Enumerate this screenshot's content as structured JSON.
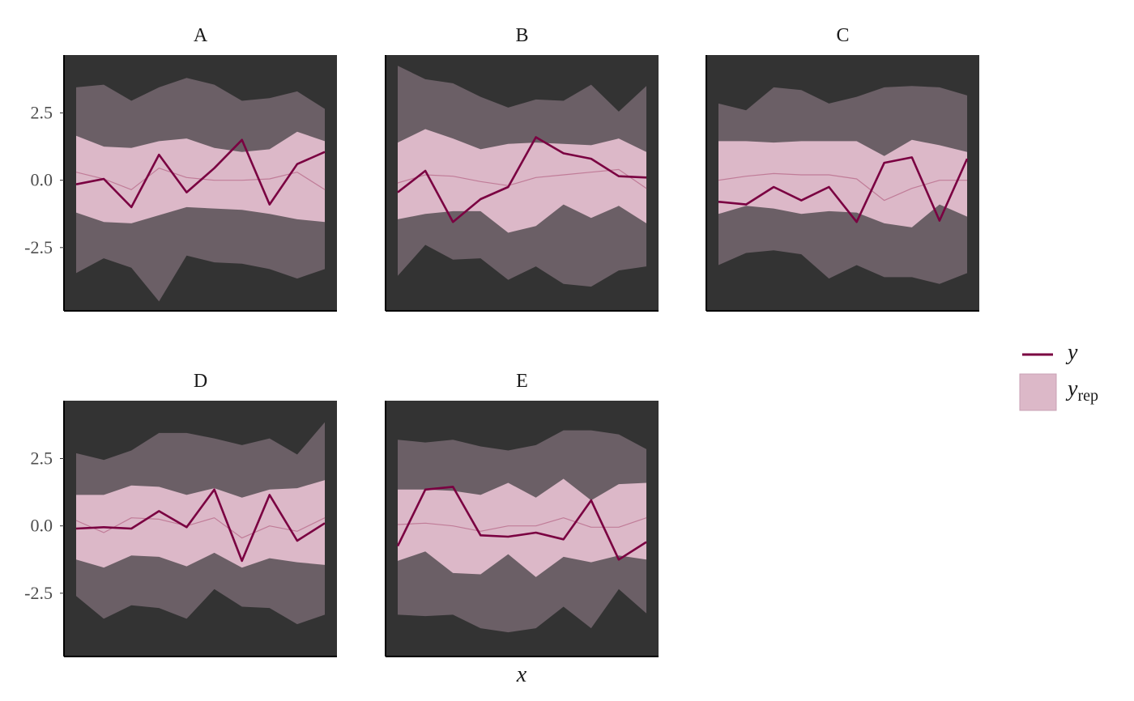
{
  "chart_data": {
    "type": "area",
    "layout": "facet-grid",
    "xlabel": "x",
    "ylabel": "",
    "ylim": [
      -4.85,
      4.65
    ],
    "y_ticks": [
      -2.5,
      0.0,
      2.5
    ],
    "y_tick_labels": [
      "-2.5",
      "0.0",
      "2.5"
    ],
    "x": [
      1,
      2,
      3,
      4,
      5,
      6,
      7,
      8,
      9,
      10
    ],
    "colors": {
      "panel_bg": "#333333",
      "outer_band": "#6b5f66",
      "inner_band": "#dcb8c8",
      "median_line": "#c07c98",
      "y_line": "#7a0041"
    },
    "legend": {
      "position": "right",
      "items": [
        {
          "label": "y",
          "kind": "line"
        },
        {
          "label": "y",
          "subscript": "rep",
          "kind": "band"
        }
      ]
    },
    "panels": [
      {
        "name": "A",
        "y": [
          -0.15,
          0.05,
          -1.0,
          0.95,
          -0.45,
          0.45,
          1.5,
          -0.9,
          0.6,
          1.05
        ],
        "median": [
          0.3,
          0.05,
          -0.35,
          0.45,
          0.1,
          0.0,
          0.0,
          0.05,
          0.3,
          -0.35
        ],
        "inner_low": [
          -1.2,
          -1.55,
          -1.6,
          -1.3,
          -1.0,
          -1.05,
          -1.1,
          -1.25,
          -1.45,
          -1.55
        ],
        "inner_high": [
          1.65,
          1.25,
          1.2,
          1.45,
          1.55,
          1.2,
          1.05,
          1.15,
          1.8,
          1.45
        ],
        "outer_low": [
          -3.45,
          -2.9,
          -3.25,
          -4.5,
          -2.8,
          -3.05,
          -3.1,
          -3.3,
          -3.65,
          -3.3
        ],
        "outer_high": [
          3.45,
          3.55,
          2.95,
          3.45,
          3.8,
          3.55,
          2.95,
          3.05,
          3.3,
          2.65
        ]
      },
      {
        "name": "B",
        "y": [
          -0.45,
          0.35,
          -1.55,
          -0.7,
          -0.25,
          1.6,
          1.0,
          0.8,
          0.15,
          0.1
        ],
        "median": [
          -0.1,
          0.2,
          0.15,
          -0.05,
          -0.2,
          0.1,
          0.2,
          0.3,
          0.4,
          -0.3
        ],
        "inner_low": [
          -1.45,
          -1.25,
          -1.15,
          -1.15,
          -1.95,
          -1.7,
          -0.9,
          -1.4,
          -0.95,
          -1.6
        ],
        "inner_high": [
          1.4,
          1.9,
          1.55,
          1.15,
          1.35,
          1.4,
          1.35,
          1.3,
          1.55,
          1.05
        ],
        "outer_low": [
          -3.55,
          -2.4,
          -2.95,
          -2.9,
          -3.7,
          -3.2,
          -3.85,
          -3.95,
          -3.35,
          -3.2
        ],
        "outer_high": [
          4.25,
          3.75,
          3.6,
          3.1,
          2.7,
          3.0,
          2.95,
          3.55,
          2.55,
          3.5
        ]
      },
      {
        "name": "C",
        "y": [
          -0.8,
          -0.9,
          -0.25,
          -0.75,
          -0.25,
          -1.55,
          0.65,
          0.85,
          -1.5,
          0.8
        ],
        "median": [
          0.0,
          0.15,
          0.25,
          0.2,
          0.2,
          0.05,
          -0.75,
          -0.3,
          0.0,
          0.0
        ],
        "inner_low": [
          -1.25,
          -0.95,
          -1.05,
          -1.25,
          -1.15,
          -1.2,
          -1.6,
          -1.75,
          -0.9,
          -1.35
        ],
        "inner_high": [
          1.45,
          1.45,
          1.4,
          1.45,
          1.45,
          1.45,
          0.9,
          1.5,
          1.3,
          1.05
        ],
        "outer_low": [
          -3.15,
          -2.7,
          -2.6,
          -2.75,
          -3.65,
          -3.15,
          -3.6,
          -3.6,
          -3.85,
          -3.45
        ],
        "outer_high": [
          2.85,
          2.6,
          3.45,
          3.35,
          2.85,
          3.1,
          3.45,
          3.5,
          3.45,
          3.15
        ]
      },
      {
        "name": "D",
        "y": [
          -0.1,
          -0.05,
          -0.1,
          0.55,
          -0.05,
          1.35,
          -1.3,
          1.15,
          -0.55,
          0.1
        ],
        "median": [
          0.2,
          -0.25,
          0.3,
          0.25,
          0.0,
          0.3,
          -0.45,
          0.0,
          -0.2,
          0.3
        ],
        "inner_low": [
          -1.25,
          -1.55,
          -1.1,
          -1.15,
          -1.5,
          -1.0,
          -1.55,
          -1.2,
          -1.35,
          -1.45
        ],
        "inner_high": [
          1.15,
          1.15,
          1.5,
          1.45,
          1.15,
          1.4,
          1.05,
          1.35,
          1.4,
          1.7
        ],
        "outer_low": [
          -2.6,
          -3.45,
          -2.95,
          -3.05,
          -3.45,
          -2.35,
          -3.0,
          -3.05,
          -3.65,
          -3.3
        ],
        "outer_high": [
          2.7,
          2.45,
          2.8,
          3.45,
          3.45,
          3.25,
          3.0,
          3.25,
          2.65,
          3.85
        ]
      },
      {
        "name": "E",
        "y": [
          -0.75,
          1.35,
          1.45,
          -0.35,
          -0.4,
          -0.25,
          -0.5,
          0.95,
          -1.25,
          -0.6
        ],
        "median": [
          0.05,
          0.1,
          0.0,
          -0.2,
          0.0,
          0.0,
          0.3,
          -0.05,
          -0.05,
          0.3
        ],
        "inner_low": [
          -1.3,
          -0.95,
          -1.75,
          -1.8,
          -1.05,
          -1.9,
          -1.15,
          -1.35,
          -1.1,
          -1.25
        ],
        "inner_high": [
          1.35,
          1.35,
          1.3,
          1.15,
          1.6,
          1.05,
          1.75,
          0.95,
          1.55,
          1.6
        ],
        "outer_low": [
          -3.3,
          -3.35,
          -3.3,
          -3.8,
          -3.95,
          -3.8,
          -3.0,
          -3.8,
          -2.35,
          -3.25
        ],
        "outer_high": [
          3.2,
          3.1,
          3.2,
          2.95,
          2.8,
          3.0,
          3.55,
          3.55,
          3.4,
          2.85
        ]
      }
    ]
  }
}
